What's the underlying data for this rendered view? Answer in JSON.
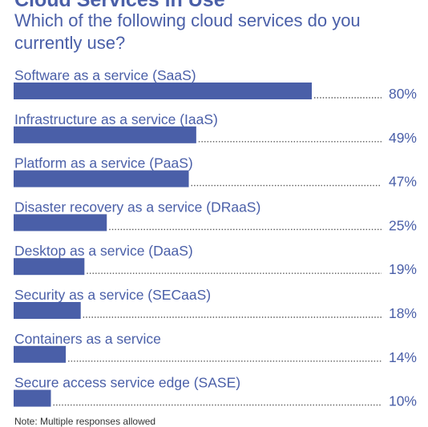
{
  "chart_data": {
    "type": "bar",
    "orientation": "horizontal",
    "title": "Cloud Services in Use",
    "subtitle": "Which of the following cloud services do you currently use?",
    "categories": [
      "Software as a service (SaaS)",
      "Infrastructure as a service (IaaS)",
      "Platform as a service (PaaS)",
      "Disaster recovery as a service (DRaaS)",
      "Desktop as a service (DaaS)",
      "Security as a service (SECaaS)",
      "Containers as a service",
      "Secure access service edge (SASE)"
    ],
    "values": [
      80,
      49,
      47,
      25,
      19,
      18,
      14,
      10
    ],
    "value_labels": [
      "80%",
      "49%",
      "47%",
      "25%",
      "19%",
      "18%",
      "14%",
      "10%"
    ],
    "unit": "%",
    "xlim": [
      0,
      100
    ],
    "grid": false,
    "bar_color": "#4a5fa8",
    "text_color": "#4a5fa8",
    "note": "Note: Multiple responses allowed"
  }
}
